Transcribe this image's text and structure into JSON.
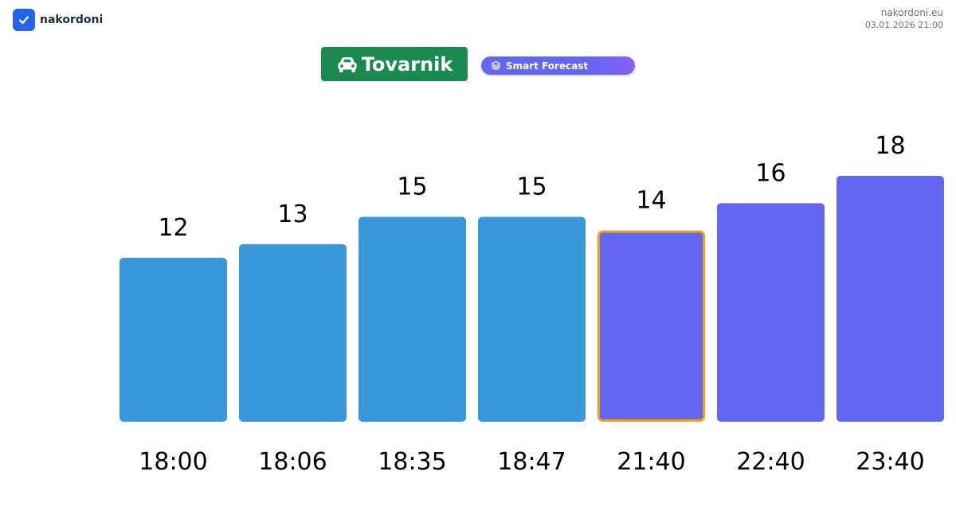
{
  "brand": {
    "name": "nakordoni",
    "logo_icon": "check-icon",
    "color": "#2563eb"
  },
  "meta": {
    "site": "nakordoni.eu",
    "timestamp": "03.01.2026 21:00"
  },
  "header": {
    "title": "Tovarnik",
    "title_icon": "car-icon",
    "title_bg": "#1a8a4f",
    "forecast_label": "Smart Forecast",
    "forecast_icon": "layers-icon",
    "forecast_colors": [
      "#6366f1",
      "#8b5cf6"
    ]
  },
  "chart_data": {
    "type": "bar",
    "categories": [
      "18:00",
      "18:06",
      "18:35",
      "18:47",
      "21:40",
      "22:40",
      "23:40"
    ],
    "values": [
      12,
      13,
      15,
      15,
      14,
      16,
      18
    ],
    "kinds": [
      "actual",
      "actual",
      "actual",
      "actual",
      "forecast",
      "forecast",
      "forecast"
    ],
    "highlight_index": 4,
    "ylim": [
      0,
      18
    ],
    "grid": false,
    "legend": "none",
    "title": "",
    "xlabel": "",
    "ylabel": "",
    "colors": {
      "actual": "#3898d9",
      "forecast": "#6366f1",
      "highlight_border": "#f59e0b",
      "text": "#000000"
    }
  }
}
